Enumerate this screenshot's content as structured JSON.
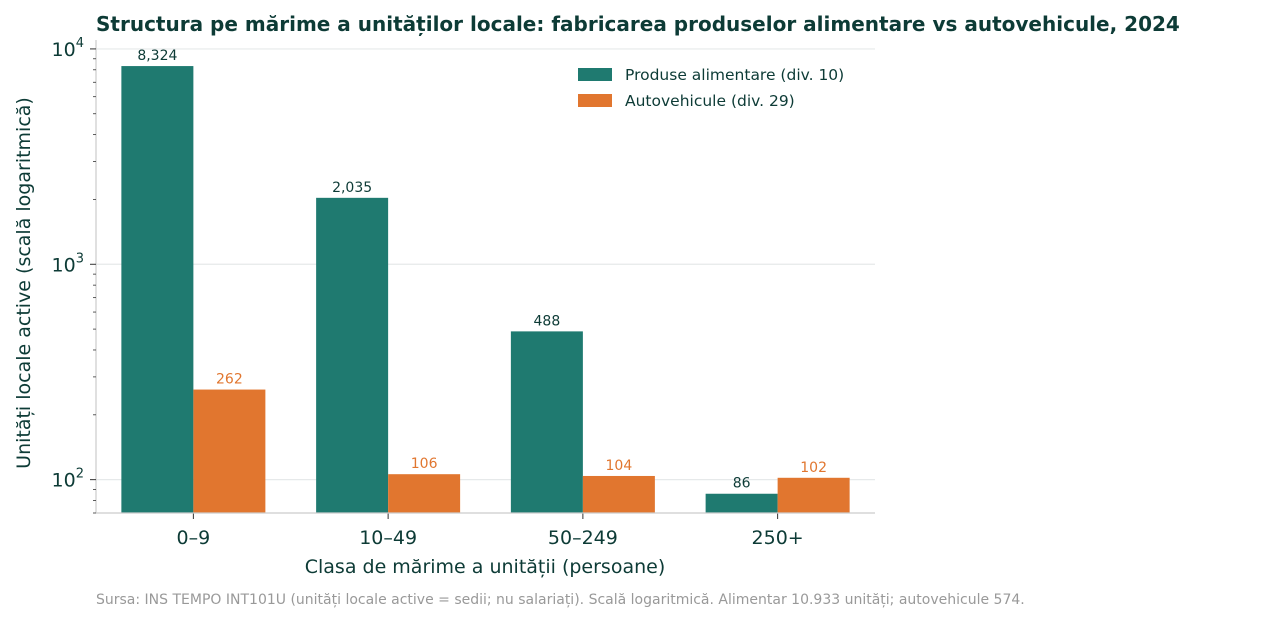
{
  "chart_data": {
    "type": "bar",
    "title": "Structura pe mărime a unităților locale: fabricarea produselor alimentare vs autovehicule, 2024",
    "xlabel": "Clasa de mărime a unității (persoane)",
    "ylabel": "Unități locale active (scală logaritmică)",
    "yscale": "log",
    "ylim": [
      70,
      11000
    ],
    "yticks": [
      {
        "value": 100,
        "base": "10",
        "exp": "2"
      },
      {
        "value": 1000,
        "base": "10",
        "exp": "3"
      },
      {
        "value": 10000,
        "base": "10",
        "exp": "4"
      }
    ],
    "categories": [
      "0–9",
      "10–49",
      "50–249",
      "250+"
    ],
    "series": [
      {
        "name": "Produse alimentare (div. 10)",
        "color": "#1f7a70",
        "label_color": "#0d3b36",
        "values": [
          8324,
          2035,
          488,
          86
        ],
        "labels": [
          "8,324",
          "2,035",
          "488",
          "86"
        ]
      },
      {
        "name": "Autovehicule (div. 29)",
        "color": "#e1762f",
        "label_color": "#e1762f",
        "values": [
          262,
          106,
          104,
          102
        ],
        "labels": [
          "262",
          "106",
          "104",
          "102"
        ]
      }
    ],
    "legend_position": "top-right",
    "grid": "horizontal",
    "source": "Sursa: INS TEMPO INT101U (unități locale active = sedii; nu salariați). Scală logaritmică. Alimentar 10.933 unități; autovehicule 574."
  }
}
